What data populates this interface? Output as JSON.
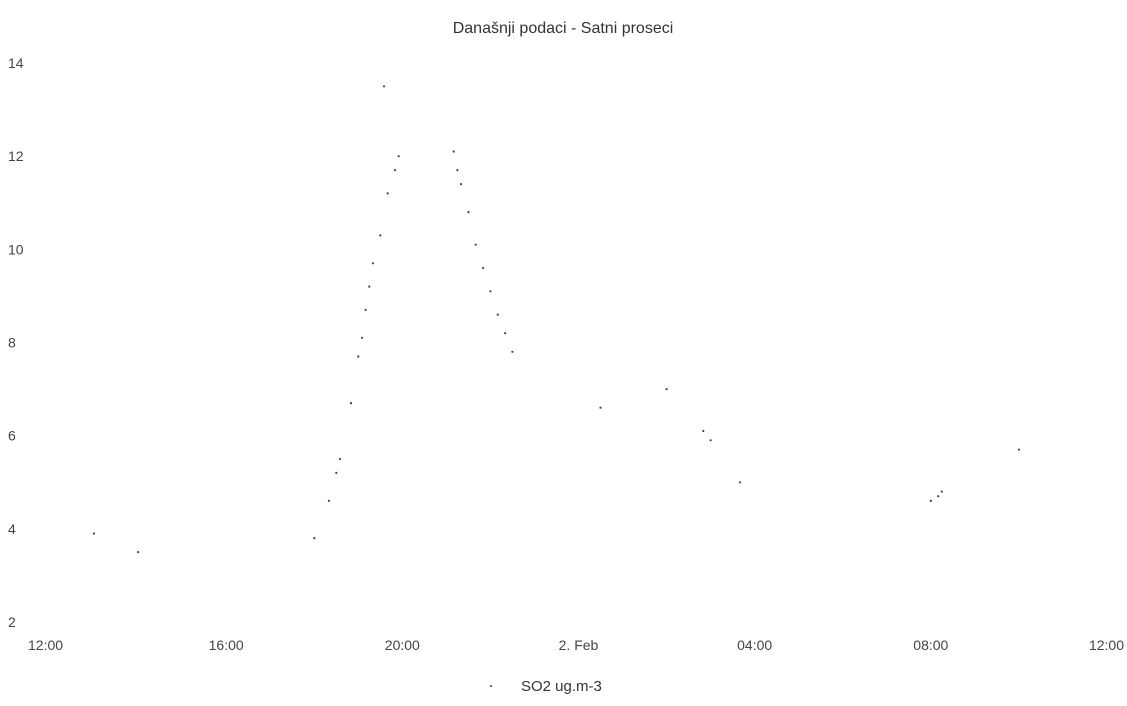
{
  "chart_data": {
    "type": "scatter",
    "title": "Današnji podaci - Satni proseci",
    "xlabel": "",
    "ylabel": "",
    "ylim": [
      2,
      14
    ],
    "xlim": [
      "12:00",
      "12:00"
    ],
    "x_ticks": [
      "12:00",
      "16:00",
      "20:00",
      "2. Feb",
      "04:00",
      "08:00",
      "12:00"
    ],
    "y_ticks": [
      "2",
      "4",
      "6",
      "8",
      "10",
      "12",
      "14"
    ],
    "grid": false,
    "legend": "bottom-center",
    "series": [
      {
        "name": "SO2 ug.m-3",
        "color": "#444444",
        "points": [
          {
            "x": "13:00",
            "y": 3.9
          },
          {
            "x": "14:00",
            "y": 3.5
          },
          {
            "x": "18:00",
            "y": 3.8
          },
          {
            "x": "18:20",
            "y": 4.6
          },
          {
            "x": "18:30",
            "y": 5.2
          },
          {
            "x": "18:35",
            "y": 5.5
          },
          {
            "x": "18:50",
            "y": 6.7
          },
          {
            "x": "19:00",
            "y": 7.7
          },
          {
            "x": "19:05",
            "y": 8.1
          },
          {
            "x": "19:10",
            "y": 8.7
          },
          {
            "x": "19:15",
            "y": 9.2
          },
          {
            "x": "19:20",
            "y": 9.7
          },
          {
            "x": "19:30",
            "y": 10.3
          },
          {
            "x": "19:40",
            "y": 11.2
          },
          {
            "x": "19:50",
            "y": 11.7
          },
          {
            "x": "19:55",
            "y": 12.0
          },
          {
            "x": "19:35",
            "y": 13.5
          },
          {
            "x": "21:10",
            "y": 12.1
          },
          {
            "x": "21:15",
            "y": 11.7
          },
          {
            "x": "21:20",
            "y": 11.4
          },
          {
            "x": "21:30",
            "y": 10.8
          },
          {
            "x": "21:40",
            "y": 10.1
          },
          {
            "x": "21:50",
            "y": 9.6
          },
          {
            "x": "22:00",
            "y": 9.1
          },
          {
            "x": "22:10",
            "y": 8.6
          },
          {
            "x": "22:20",
            "y": 8.2
          },
          {
            "x": "22:30",
            "y": 7.8
          },
          {
            "x": "00:30",
            "y": 6.6
          },
          {
            "x": "02:00",
            "y": 7.0
          },
          {
            "x": "02:50",
            "y": 6.1
          },
          {
            "x": "03:00",
            "y": 5.9
          },
          {
            "x": "03:40",
            "y": 5.0
          },
          {
            "x": "08:00",
            "y": 4.6
          },
          {
            "x": "08:10",
            "y": 4.7
          },
          {
            "x": "08:15",
            "y": 4.8
          },
          {
            "x": "10:00",
            "y": 5.7
          }
        ]
      }
    ]
  }
}
